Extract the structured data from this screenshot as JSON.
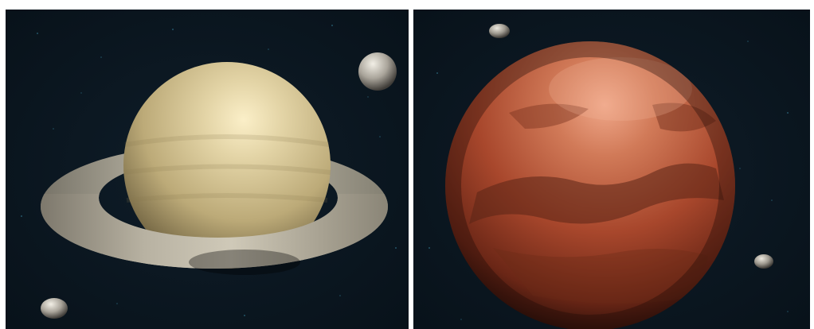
{
  "scene": {
    "background_color": "#0b1620",
    "panels": [
      {
        "id": "left",
        "subject": "ringed-planet",
        "body_color": "#d8c9a0",
        "ring_color": "#b9b29f",
        "moons": 2
      },
      {
        "id": "right",
        "subject": "red-planet",
        "body_color": "#b24b2e",
        "moons": 2
      }
    ]
  }
}
